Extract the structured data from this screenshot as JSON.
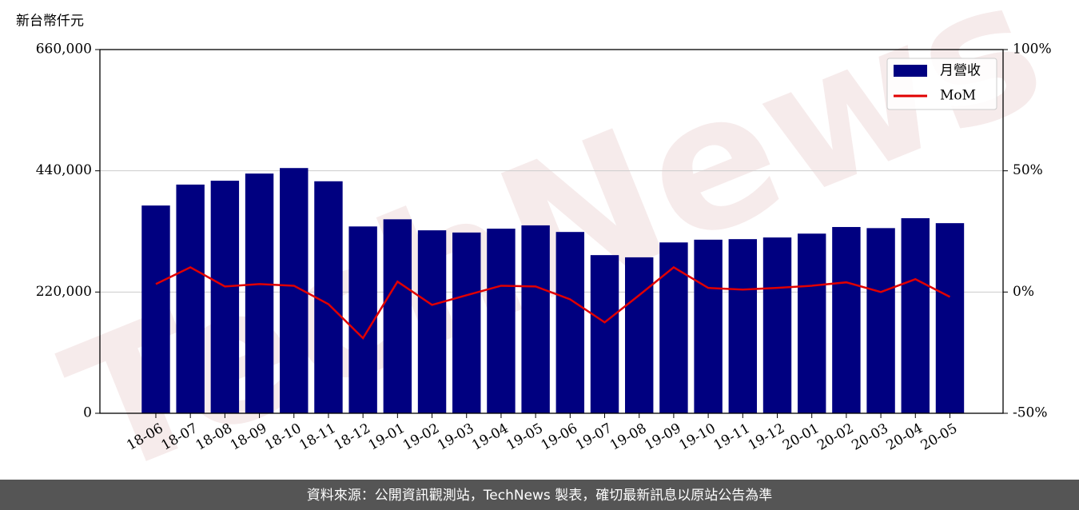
{
  "chart_data": {
    "type": "bar_line",
    "y_axis_label": "新台幣仟元",
    "watermark": "TechNews",
    "footer": "資料來源：公開資訊觀測站，TechNews 製表，確切最新訊息以原站公告為準",
    "categories": [
      "18-06",
      "18-07",
      "18-08",
      "18-09",
      "18-10",
      "18-11",
      "18-12",
      "19-01",
      "19-02",
      "19-03",
      "19-04",
      "19-05",
      "19-06",
      "19-07",
      "19-08",
      "19-09",
      "19-10",
      "19-11",
      "19-12",
      "20-01",
      "20-02",
      "20-03",
      "20-04",
      "20-05"
    ],
    "series": [
      {
        "name": "月營收",
        "color": "#000080",
        "type": "bar",
        "values": [
          377000,
          415000,
          422000,
          435000,
          445000,
          421000,
          339000,
          352000,
          332000,
          328000,
          335000,
          341000,
          329000,
          287000,
          283000,
          310000,
          315000,
          316000,
          319000,
          326000,
          338000,
          336000,
          354000,
          345000
        ]
      },
      {
        "name": "MoM",
        "color": "#e00000",
        "type": "line",
        "axis": "y2",
        "values": [
          3.3,
          10.2,
          2.3,
          3.3,
          2.6,
          -5,
          -19,
          4.3,
          -5.3,
          -1.3,
          2.6,
          2.3,
          -3,
          -12.5,
          -1.3,
          10.2,
          1.7,
          1,
          1.7,
          2.6,
          4,
          0,
          5.3,
          -2
        ]
      }
    ],
    "ylim": [
      0,
      660000
    ],
    "yticks": [
      0,
      {
        "value": 220000,
        "label": "220,000"
      },
      {
        "value": 440000,
        "label": "440,000"
      },
      {
        "value": 660000,
        "label": "660,000"
      }
    ],
    "y2lim": [
      -50,
      100
    ],
    "y2ticks": [
      {
        "value": -50,
        "label": "-50%"
      },
      {
        "value": 0,
        "label": "0%"
      },
      {
        "value": 50,
        "label": "50%"
      },
      {
        "value": 100,
        "label": "100%"
      }
    ],
    "grid": true,
    "legend": "upper right"
  }
}
